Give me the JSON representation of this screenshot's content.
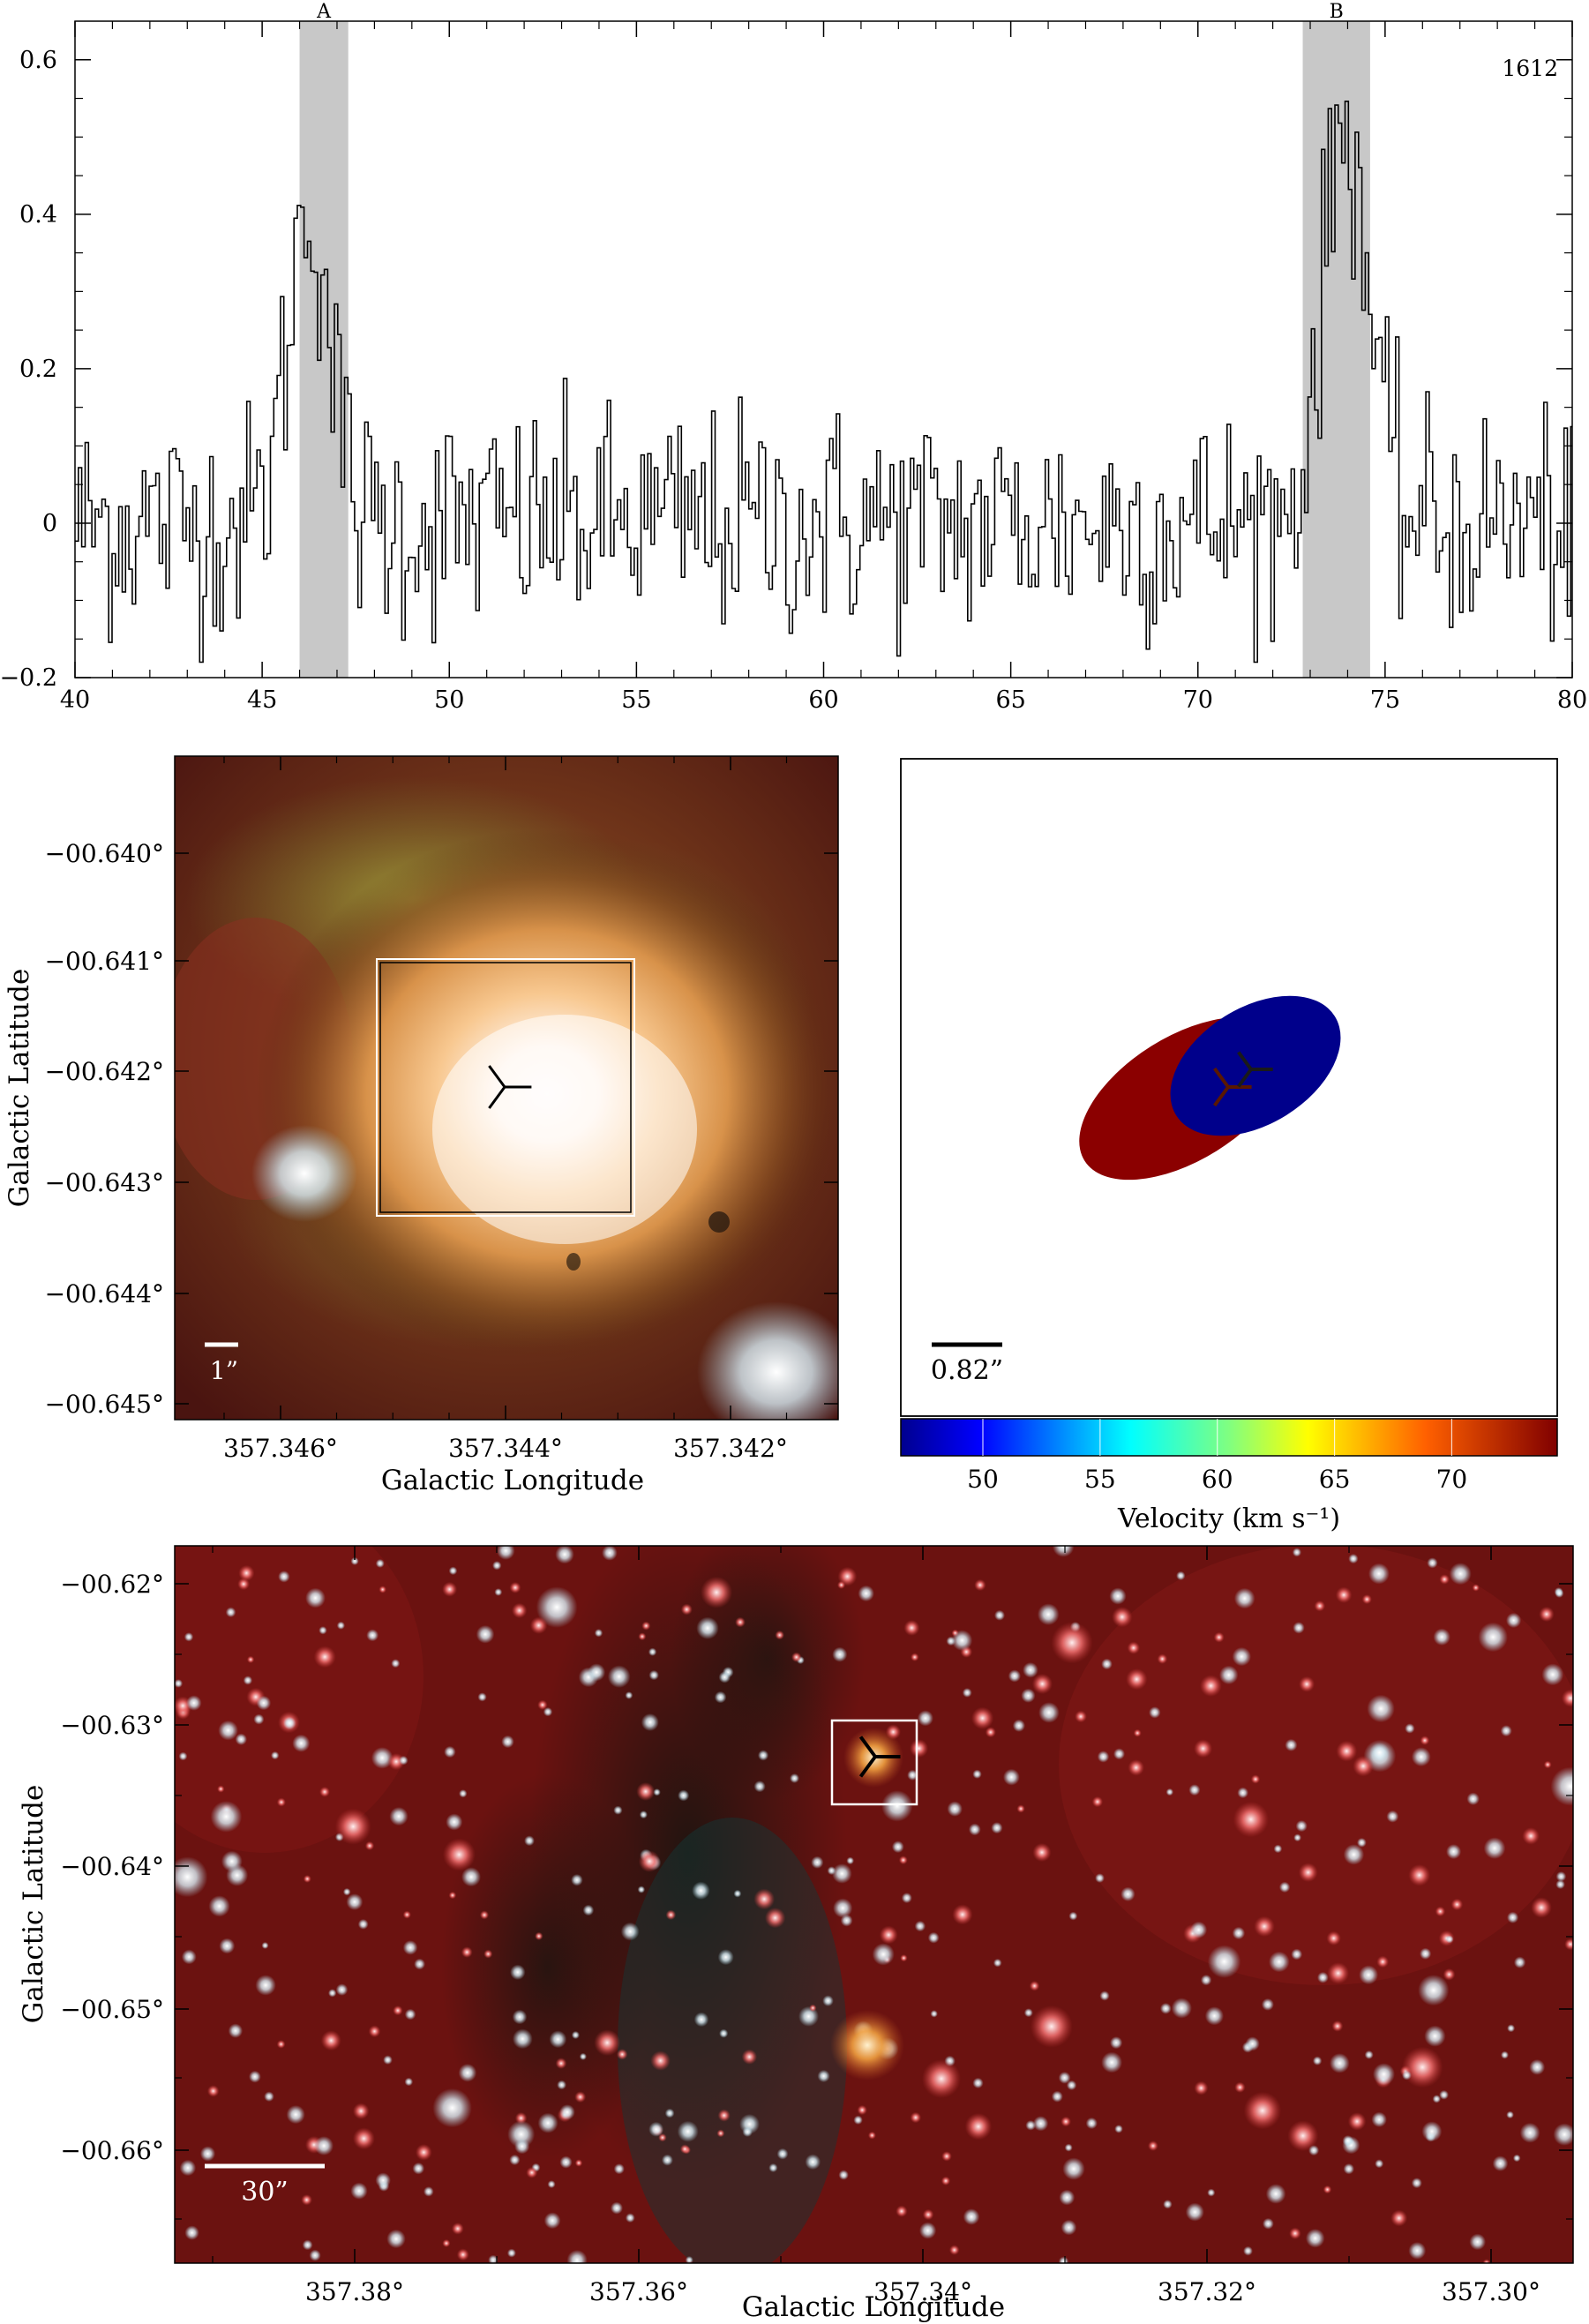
{
  "chart_data": [
    {
      "type": "line",
      "panel": "spectrum",
      "annotation": "1612",
      "xlim": [
        40,
        80
      ],
      "ylim": [
        -0.2,
        0.65
      ],
      "x_ticks": [
        40,
        45,
        50,
        55,
        60,
        65,
        70,
        75,
        80
      ],
      "y_ticks": [
        -0.2,
        0,
        0.2,
        0.4,
        0.6
      ],
      "x_tick_labels": [
        "40",
        "45",
        "50",
        "55",
        "60",
        "65",
        "70",
        "75",
        "80"
      ],
      "y_tick_labels": [
        "−0.2",
        "0",
        "0.2",
        "0.4",
        "0.6"
      ],
      "highlight_bands": [
        {
          "label": "A",
          "from": 46.0,
          "to": 47.3
        },
        {
          "label": "B",
          "from": 72.8,
          "to": 74.6
        }
      ],
      "peaks": [
        {
          "center": 46.2,
          "amplitude": 0.41,
          "width": 0.55
        },
        {
          "center": 73.9,
          "amplitude": 0.52,
          "width": 0.6
        }
      ],
      "noise_rms": 0.075,
      "channel_width": 0.09
    },
    {
      "type": "image",
      "panel": "zoom-image",
      "xlabel": "Galactic Longitude",
      "ylabel": "Galactic Latitude",
      "x_tick_labels": [
        "357.346°",
        "357.344°",
        "357.342°"
      ],
      "y_tick_labels": [
        "−00.640°",
        "−00.641°",
        "−00.642°",
        "−00.643°",
        "−00.644°",
        "−00.645°"
      ],
      "scale_bar_label": "1”",
      "marker": "three-pointed-star"
    },
    {
      "type": "scatter",
      "panel": "velocity-ellipses",
      "scale_bar_label": "0.82”",
      "colorbar_label": "Velocity (km s⁻¹)",
      "colorbar_ticks": [
        "50",
        "55",
        "60",
        "65",
        "70"
      ],
      "colorbar_range": [
        46.5,
        74.5
      ],
      "ellipses": [
        {
          "velocity": 73.9,
          "color": "#8b0000"
        },
        {
          "velocity": 46.2,
          "color": "#00008b"
        }
      ]
    },
    {
      "type": "image",
      "panel": "wide-field-image",
      "xlabel": "Galactic Longitude",
      "ylabel": "Galactic Latitude",
      "x_tick_labels": [
        "357.38°",
        "357.36°",
        "357.34°",
        "357.32°",
        "357.30°"
      ],
      "y_tick_labels": [
        "−00.62°",
        "−00.63°",
        "−00.64°",
        "−00.65°",
        "−00.66°"
      ],
      "scale_bar_label": "30”",
      "marker": "three-pointed-star"
    }
  ],
  "colors": {
    "band": "#c8c8c8",
    "line": "#000000",
    "ellipse_red": "#8b0000",
    "ellipse_blue": "#00008b",
    "image_background": "#6b1210",
    "star_core": "#ffffff",
    "marker": "#000000"
  }
}
